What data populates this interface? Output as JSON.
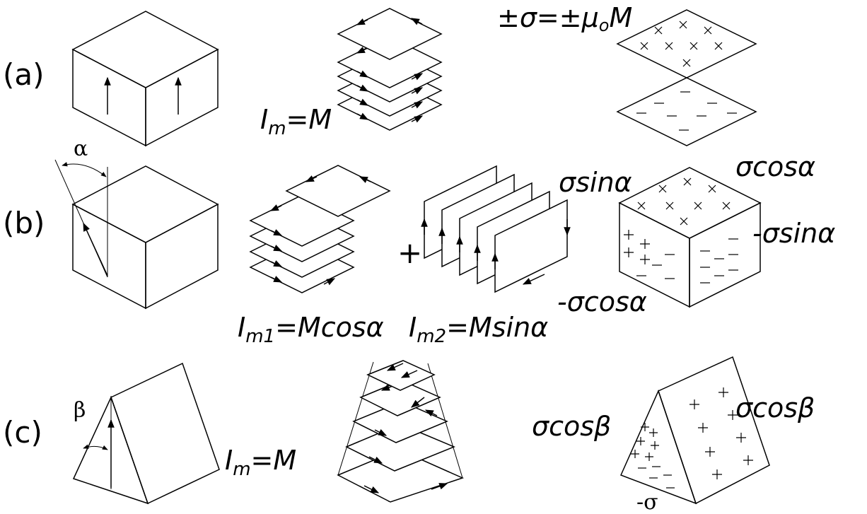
{
  "figure": {
    "rows": [
      {
        "label": "(a)",
        "current_eq_prefix": "I",
        "current_eq_sub": "m",
        "current_eq_rest": "=M",
        "surface_eq": "±σ=±μ",
        "surface_eq_sub": "o",
        "surface_eq_rest": "M"
      },
      {
        "label": "(b)",
        "angle": "α",
        "plus": "+",
        "current1_prefix": "I",
        "current1_sub": "m1",
        "current1_rest": "=Mcosα",
        "current2_prefix": "I",
        "current2_sub": "m2",
        "current2_rest": "=Msinα",
        "sigma_sin": "σsinα",
        "sigma_cos": "σcosα",
        "neg_sigma_sin": "-σsinα",
        "neg_sigma_cos": "-σcosα"
      },
      {
        "label": "(c)",
        "angle": "β",
        "current_eq_prefix": "I",
        "current_eq_sub": "m",
        "current_eq_rest": "=M",
        "sigma_cos_left": "σcosβ",
        "sigma_cos_right": "σcosβ",
        "neg_sigma": "-σ"
      }
    ]
  }
}
